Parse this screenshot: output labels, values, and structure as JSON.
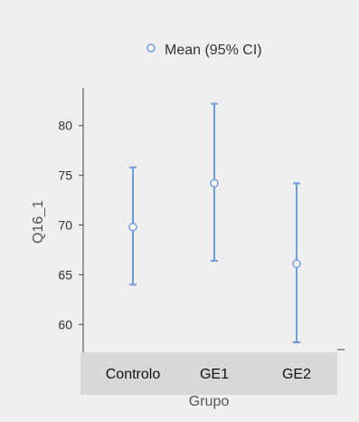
{
  "chart_data": {
    "type": "scatter",
    "subtype": "mean-with-error-bars",
    "title": "",
    "xlabel": "Grupo",
    "ylabel": "Q16_1",
    "legend": {
      "label": "Mean (95% CI)",
      "position": "top"
    },
    "categories": [
      "Controlo",
      "GE1",
      "GE2"
    ],
    "series": [
      {
        "name": "Mean (95% CI)",
        "means": [
          69.8,
          74.2,
          66.1
        ],
        "ci_lower": [
          64.0,
          66.4,
          58.2
        ],
        "ci_upper": [
          75.8,
          82.2,
          74.2
        ]
      }
    ],
    "yticks": [
      60,
      65,
      70,
      75,
      80
    ],
    "ylim": [
      57.2,
      83.8
    ],
    "grid": false
  },
  "colors": {
    "panel_bg": "#efefef",
    "category_band_bg": "#d8d8d8",
    "axis": "#444444",
    "errorbar": "#6e9be0",
    "point_fill": "#ffffff",
    "tick_text": "#333333",
    "axis_title_text": "#555555"
  }
}
